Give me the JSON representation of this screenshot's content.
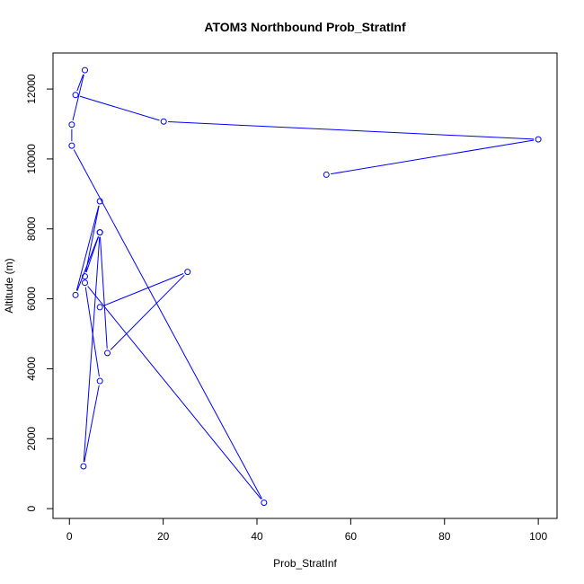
{
  "chart_data": {
    "type": "line",
    "title": "ATOM3 Northbound Prob_StratInf",
    "xlabel": "Prob_StratInf",
    "ylabel": "Altitude (m)",
    "xlim": [
      -3.5,
      104
    ],
    "ylim": [
      -280,
      13030
    ],
    "x_ticks": [
      0,
      20,
      40,
      60,
      80,
      100
    ],
    "y_ticks": [
      0,
      2000,
      4000,
      6000,
      8000,
      10000,
      12000
    ],
    "grid": false,
    "legend": "none",
    "line_color": "#0000ff",
    "marker": "open-circle",
    "series": [
      {
        "x": [
          54.8,
          100.0,
          20.1,
          1.3,
          3.3,
          0.5,
          0.5,
          41.5,
          3.3,
          6.5,
          3.0,
          6.5,
          3.3,
          6.5,
          1.3,
          6.5,
          8.1,
          25.2,
          6.5
        ],
        "y": [
          9550,
          10560,
          11070,
          11830,
          12540,
          10980,
          10380,
          170,
          6460,
          3650,
          1210,
          7900,
          6640,
          8790,
          6110,
          7900,
          4450,
          6770,
          5760
        ]
      }
    ]
  }
}
